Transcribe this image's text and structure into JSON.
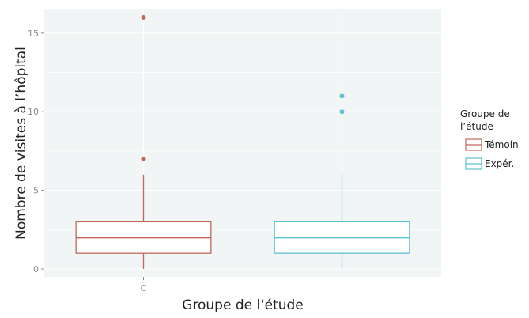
{
  "chart_data": {
    "type": "boxplot",
    "xlabel": "Groupe de l’étude",
    "ylabel": "Nombre de visites à l’hôpital",
    "ylim": [
      -0.5,
      16.5
    ],
    "y_ticks": [
      0,
      5,
      10,
      15
    ],
    "categories": [
      "C",
      "I"
    ],
    "grid": true,
    "legend": {
      "title_lines": [
        "Groupe de",
        "l’étude"
      ],
      "placement": "right",
      "entries": [
        {
          "label": "Témoin",
          "color": "#c0675a"
        },
        {
          "label": "Expér.",
          "color": "#5fc0d0"
        }
      ]
    },
    "series": [
      {
        "category": "C",
        "min": 0,
        "q1": 1,
        "median": 2,
        "q3": 3,
        "max": 6,
        "outliers": [
          7,
          16
        ],
        "color": "#c0675a"
      },
      {
        "category": "I",
        "min": 0,
        "q1": 1,
        "median": 2,
        "q3": 3,
        "max": 6,
        "outliers": [
          10,
          11
        ],
        "color": "#5fc0d0"
      }
    ]
  }
}
